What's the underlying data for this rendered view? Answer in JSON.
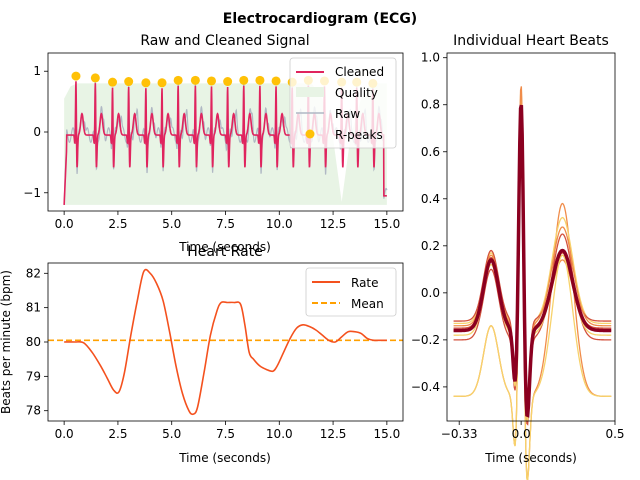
{
  "figure": {
    "title": "Electrocardiogram (ECG)"
  },
  "chart_data": [
    {
      "id": "signal",
      "type": "line",
      "title": "Raw and Cleaned Signal",
      "xlabel": "Time (seconds)",
      "ylabel": "",
      "xlim": [
        -0.75,
        15.75
      ],
      "ylim": [
        -1.3,
        1.3
      ],
      "xticks": [
        0,
        2.5,
        5,
        7.5,
        10,
        12.5,
        15
      ],
      "xtick_labels": [
        "0.0",
        "2.5",
        "5.0",
        "7.5",
        "10.0",
        "12.5",
        "15.0"
      ],
      "yticks": [
        -1,
        0,
        1
      ],
      "ytick_labels": [
        "−1",
        "0",
        "1"
      ],
      "legend_position": "top-right",
      "legend": [
        "Cleaned",
        "Quality",
        "Raw",
        "R-peaks"
      ],
      "colors": {
        "cleaned": "#e0245e",
        "quality": "#e8f4e5",
        "raw": "#b0b8c4",
        "rpeaks": "#ffc107"
      },
      "duration": 15,
      "r_peaks": {
        "x": [
          0.55,
          1.45,
          2.25,
          3.0,
          3.8,
          4.55,
          5.3,
          6.1,
          6.85,
          7.6,
          8.35,
          9.1,
          9.85,
          10.6,
          11.35,
          12.1,
          12.9,
          13.6,
          14.35
        ],
        "y": [
          0.92,
          0.89,
          0.82,
          0.83,
          0.81,
          0.81,
          0.85,
          0.85,
          0.84,
          0.83,
          0.85,
          0.85,
          0.84,
          0.82,
          0.85,
          0.84,
          0.82,
          0.82,
          0.8
        ]
      },
      "quality": {
        "x": [
          0,
          0.3,
          0.6,
          11.5,
          12.0,
          12.5,
          12.9,
          13.3,
          13.8,
          14.2,
          15.0
        ],
        "y": [
          0.55,
          0.75,
          0.8,
          0.8,
          0.55,
          -0.1,
          -1.15,
          -0.1,
          0.55,
          0.8,
          0.8
        ]
      }
    },
    {
      "id": "rate",
      "type": "line",
      "title": "Heart Rate",
      "xlabel": "Time (seconds)",
      "ylabel": "Beats per minute (bpm)",
      "xlim": [
        -0.75,
        15.75
      ],
      "ylim": [
        77.7,
        82.3
      ],
      "xticks": [
        0,
        2.5,
        5,
        7.5,
        10,
        12.5,
        15
      ],
      "xtick_labels": [
        "0.0",
        "2.5",
        "5.0",
        "7.5",
        "10.0",
        "12.5",
        "15.0"
      ],
      "yticks": [
        78,
        79,
        80,
        81,
        82
      ],
      "ytick_labels": [
        "78",
        "79",
        "80",
        "81",
        "82"
      ],
      "legend_position": "top-right",
      "legend": [
        "Rate",
        "Mean"
      ],
      "colors": {
        "rate": "#f4511e",
        "mean": "#ffa000"
      },
      "mean": 80.05,
      "series": [
        {
          "name": "Rate",
          "x": [
            0,
            0.5,
            0.9,
            1.3,
            1.7,
            2.0,
            2.3,
            2.55,
            2.8,
            3.1,
            3.4,
            3.7,
            4.0,
            4.3,
            4.6,
            4.9,
            5.2,
            5.5,
            5.8,
            6.0,
            6.2,
            6.5,
            6.8,
            7.1,
            7.3,
            7.6,
            7.9,
            8.2,
            8.4,
            8.6,
            8.8,
            9.1,
            9.4,
            9.7,
            9.9,
            10.2,
            10.5,
            10.8,
            11.1,
            11.4,
            11.7,
            12.0,
            12.3,
            12.6,
            12.9,
            13.2,
            13.5,
            13.8,
            14.1,
            14.4,
            14.7,
            15.0
          ],
          "y": [
            80.0,
            80.0,
            79.98,
            79.7,
            79.3,
            78.95,
            78.6,
            78.55,
            79.1,
            80.2,
            81.2,
            82.05,
            82.0,
            81.7,
            81.2,
            80.3,
            79.3,
            78.5,
            78.0,
            77.9,
            78.1,
            79.1,
            80.2,
            80.9,
            81.15,
            81.15,
            81.15,
            81.1,
            80.5,
            79.7,
            79.5,
            79.3,
            79.2,
            79.15,
            79.3,
            79.7,
            80.1,
            80.4,
            80.5,
            80.45,
            80.35,
            80.2,
            80.05,
            80.0,
            80.15,
            80.3,
            80.3,
            80.25,
            80.1,
            80.05,
            80.05,
            80.05
          ]
        }
      ]
    },
    {
      "id": "beats",
      "type": "line",
      "title": "Individual Heart Beats",
      "xlabel": "Time (seconds)",
      "ylabel": "",
      "xlim": [
        -0.395,
        0.5
      ],
      "ylim": [
        -0.545,
        1.02
      ],
      "xticks": [
        -0.33,
        0.0,
        0.5
      ],
      "xtick_labels": [
        "−0.33",
        "0.0",
        "0.5"
      ],
      "yticks": [
        -0.4,
        -0.2,
        0.0,
        0.2,
        0.4,
        0.6,
        0.8,
        1.0
      ],
      "ytick_labels": [
        "−0.4",
        "−0.2",
        "0.0",
        "0.2",
        "0.4",
        "0.6",
        "0.8",
        "1.0"
      ],
      "colors": {
        "mean": "#8b0020",
        "light": "#f7d26b",
        "mid": "#f08c4a",
        "dark": "#d3523d"
      }
    }
  ]
}
